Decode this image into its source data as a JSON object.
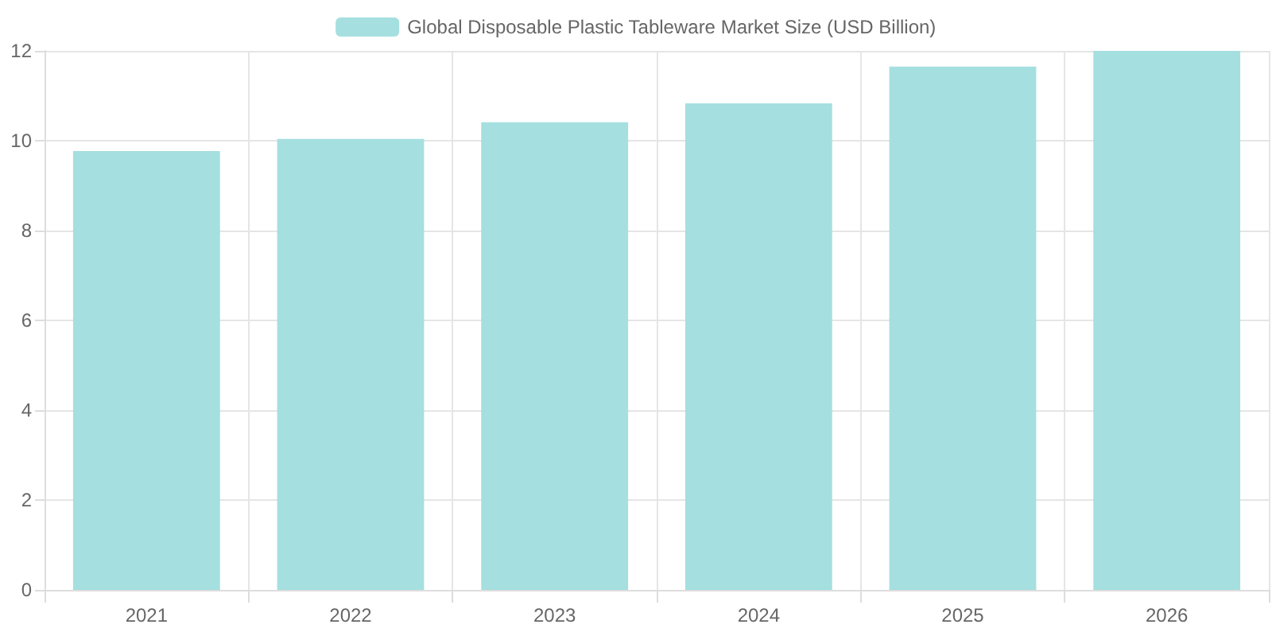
{
  "chart_data": {
    "type": "bar",
    "categories": [
      "2021",
      "2022",
      "2023",
      "2024",
      "2025",
      "2026"
    ],
    "series": [
      {
        "name": "Global Disposable Plastic Tableware Market Size (USD Billion)",
        "color": "#a5dfdf",
        "values": [
          9.77,
          10.04,
          10.41,
          10.83,
          11.65,
          12.0
        ]
      }
    ],
    "ylim": [
      0,
      12
    ],
    "yticks": [
      0,
      2,
      4,
      6,
      8,
      10,
      12
    ],
    "grid": true,
    "legend": "top"
  }
}
